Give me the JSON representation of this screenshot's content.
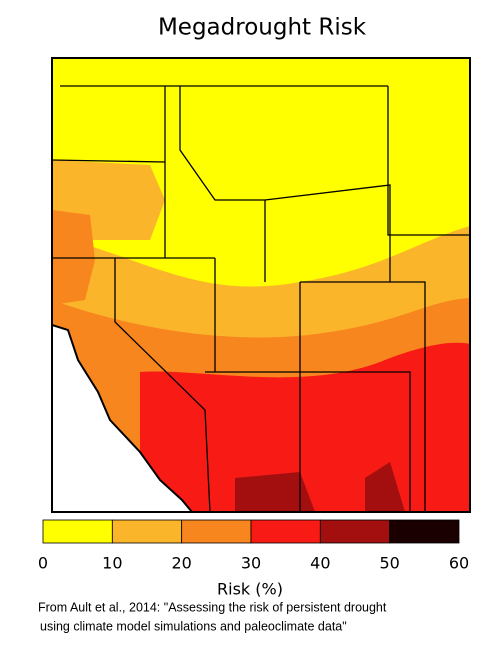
{
  "title": "Megadrought Risk",
  "colorbar": {
    "label": "Risk (%)",
    "ticks": [
      0,
      10,
      20,
      30,
      40,
      50,
      60
    ],
    "colors": [
      "#ffff00",
      "#fbb52a",
      "#f7861e",
      "#f81a14",
      "#a30f0f",
      "#1a0000"
    ]
  },
  "credit": [
    "From Ault et al., 2014: \"Assessing the risk of persistent drought",
    "using climate model simulations and paleoclimate data\""
  ]
}
